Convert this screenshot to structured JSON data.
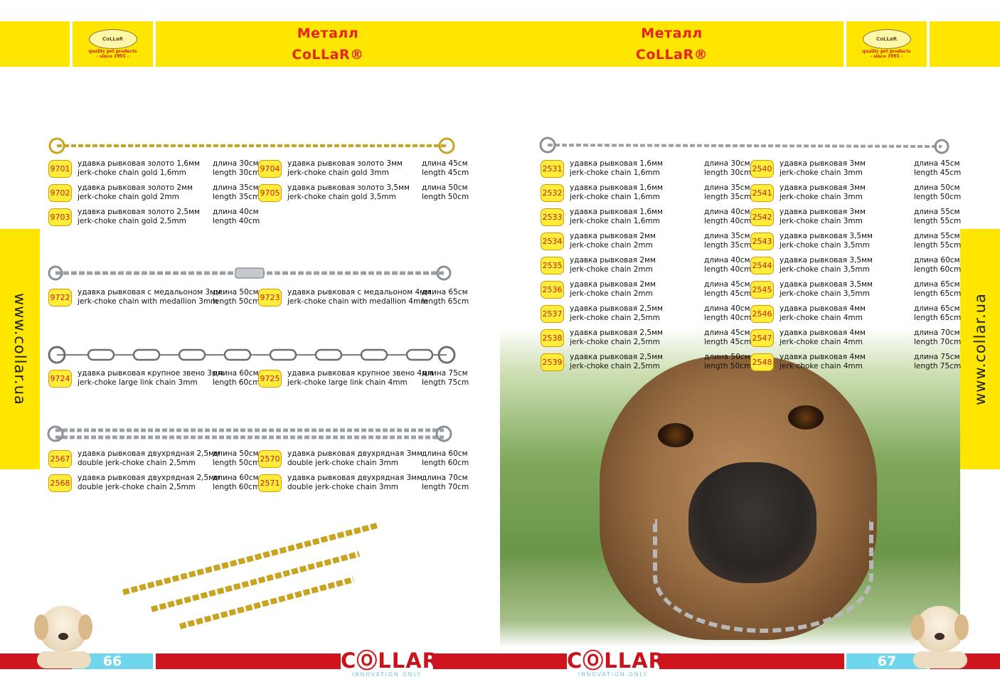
{
  "header": {
    "title_line1": "Металл",
    "title_line2": "CoLLaR®",
    "logo_brand": "CoLLaR",
    "logo_tagline": "quality pet products",
    "logo_since": "- since 1995 -"
  },
  "side_tab_text": "www.collar.ua",
  "left_page": {
    "groups": [
      {
        "items": [
          {
            "code": "9701",
            "ru": "удавка рывковая золото 1,6мм",
            "en": "jerk-choke chain gold 1,6mm",
            "len_ru": "длина 30см",
            "len_en": "length 30cm"
          },
          {
            "code": "9704",
            "ru": "удавка рывковая золото 3мм",
            "en": "jerk-choke chain gold 3mm",
            "len_ru": "длина 45см",
            "len_en": "length 45cm"
          },
          {
            "code": "9702",
            "ru": "удавка рывковая золото 2мм",
            "en": "jerk-choke chain gold 2mm",
            "len_ru": "длина 35см",
            "len_en": "length 35cm"
          },
          {
            "code": "9705",
            "ru": "удавка рывковая золото 3,5мм",
            "en": "jerk-choke chain gold 3,5mm",
            "len_ru": "длина 50см",
            "len_en": "length 50cm"
          },
          {
            "code": "9703",
            "ru": "удавка рывковая золото 2,5мм",
            "en": "jerk-choke chain gold 2,5mm",
            "len_ru": "длина 40см",
            "len_en": "length 40cm"
          }
        ]
      },
      {
        "items": [
          {
            "code": "9722",
            "ru": "удавка рывковая с медальоном 3мм",
            "en": "jerk-choke chain with medallion 3mm",
            "len_ru": "длина 50см",
            "len_en": "length 50cm"
          },
          {
            "code": "9723",
            "ru": "удавка рывковая с медальоном 4мм",
            "en": "jerk-choke chain with medallion 4mm",
            "len_ru": "длина 65см",
            "len_en": "length 65cm"
          }
        ]
      },
      {
        "items": [
          {
            "code": "9724",
            "ru": "удавка рывковая крупное звено 3мм",
            "en": "jerk-choke large link chain 3mm",
            "len_ru": "длина 60см",
            "len_en": "length 60cm"
          },
          {
            "code": "9725",
            "ru": "удавка рывковая крупное звено 4мм",
            "en": "jerk-choke large link chain 4mm",
            "len_ru": "длина 75см",
            "len_en": "length 75cm"
          }
        ]
      },
      {
        "items": [
          {
            "code": "2567",
            "ru": "удавка рывковая двухрядная 2,5мм",
            "en": "double jerk-choke chain 2,5mm",
            "len_ru": "длина 50см",
            "len_en": "length 50cm"
          },
          {
            "code": "2570",
            "ru": "удавка рывковая двухрядная 3мм",
            "en": "double jerk-choke chain 3mm",
            "len_ru": "длина 60см",
            "len_en": "length 60cm"
          },
          {
            "code": "2568",
            "ru": "удавка рывковая двухрядная 2,5мм",
            "en": "double jerk-choke chain 2,5mm",
            "len_ru": "длина 60см",
            "len_en": "length 60cm"
          },
          {
            "code": "2571",
            "ru": "удавка рывковая двухрядная 3мм",
            "en": "double jerk-choke chain 3mm",
            "len_ru": "длина 70см",
            "len_en": "length 70cm"
          }
        ]
      }
    ],
    "page_number": "66"
  },
  "right_page": {
    "col1": [
      {
        "code": "2531",
        "ru": "удавка рывковая 1,6мм",
        "en": "jerk-choke chain 1,6mm",
        "len_ru": "длина 30см",
        "len_en": "length 30cm"
      },
      {
        "code": "2532",
        "ru": "удавка рывковая 1,6мм",
        "en": "jerk-choke chain 1,6mm",
        "len_ru": "длина 35см",
        "len_en": "length 35cm"
      },
      {
        "code": "2533",
        "ru": "удавка рывковая 1,6мм",
        "en": "jerk-choke chain 1,6mm",
        "len_ru": "длина 40см",
        "len_en": "length 40cm"
      },
      {
        "code": "2534",
        "ru": "удавка рывковая 2мм",
        "en": "jerk-choke chain 2mm",
        "len_ru": "длина 35см",
        "len_en": "length 35cm"
      },
      {
        "code": "2535",
        "ru": "удавка рывковая 2мм",
        "en": "jerk-choke chain 2mm",
        "len_ru": "длина 40см",
        "len_en": "length 40cm"
      },
      {
        "code": "2536",
        "ru": "удавка рывковая 2мм",
        "en": "jerk-choke chain 2mm",
        "len_ru": "длина 45см",
        "len_en": "length 45cm"
      },
      {
        "code": "2537",
        "ru": "удавка рывковая 2,5мм",
        "en": "jerk-choke chain 2,5mm",
        "len_ru": "длина 40см",
        "len_en": "length 40cm"
      },
      {
        "code": "2538",
        "ru": "удавка рывковая 2,5мм",
        "en": "jerk-choke chain 2,5mm",
        "len_ru": "длина 45см",
        "len_en": "length 45cm"
      },
      {
        "code": "2539",
        "ru": "удавка рывковая 2,5мм",
        "en": "jerk-choke chain 2,5mm",
        "len_ru": "длина 50см",
        "len_en": "length 50cm"
      }
    ],
    "col2": [
      {
        "code": "2540",
        "ru": "удавка рывковая 3мм",
        "en": "jerk-choke chain 3mm",
        "len_ru": "длина 45см",
        "len_en": "length 45cm"
      },
      {
        "code": "2541",
        "ru": "удавка рывковая 3мм",
        "en": "jerk-choke chain 3mm",
        "len_ru": "длина 50см",
        "len_en": "length 50cm"
      },
      {
        "code": "2542",
        "ru": "удавка рывковая 3мм",
        "en": "jerk-choke chain 3mm",
        "len_ru": "длина 55см",
        "len_en": "length 55cm"
      },
      {
        "code": "2543",
        "ru": "удавка рывковая 3,5мм",
        "en": "jerk-choke chain 3,5mm",
        "len_ru": "длина 55см",
        "len_en": "length 55cm"
      },
      {
        "code": "2544",
        "ru": "удавка рывковая 3,5мм",
        "en": "jerk-choke chain 3,5mm",
        "len_ru": "длина 60см",
        "len_en": "length 60cm"
      },
      {
        "code": "2545",
        "ru": "удавка рывковая 3,5мм",
        "en": "jerk-choke chain 3,5mm",
        "len_ru": "длина 65см",
        "len_en": "length 65cm"
      },
      {
        "code": "2546",
        "ru": "удавка рывковая 4мм",
        "en": "jerk-choke chain 4mm",
        "len_ru": "длина 65см",
        "len_en": "length 65cm"
      },
      {
        "code": "2547",
        "ru": "удавка рывковая 4мм",
        "en": "jerk-choke chain 4mm",
        "len_ru": "длина 70см",
        "len_en": "length 70cm"
      },
      {
        "code": "2548",
        "ru": "удавка рывковая 4мм",
        "en": "jerk-choke chain 4mm",
        "len_ru": "длина 75см",
        "len_en": "length 75cm"
      }
    ],
    "page_number": "67"
  },
  "footer": {
    "brand": "CⓄLLAR",
    "tagline": "INNOVATION ONLY"
  },
  "colors": {
    "header_yellow": "#ffe600",
    "title_red": "#e4241f",
    "footer_red": "#d0141e",
    "page_number_cyan": "#6fd6ee",
    "badge_yellow": "#ffed3a"
  }
}
